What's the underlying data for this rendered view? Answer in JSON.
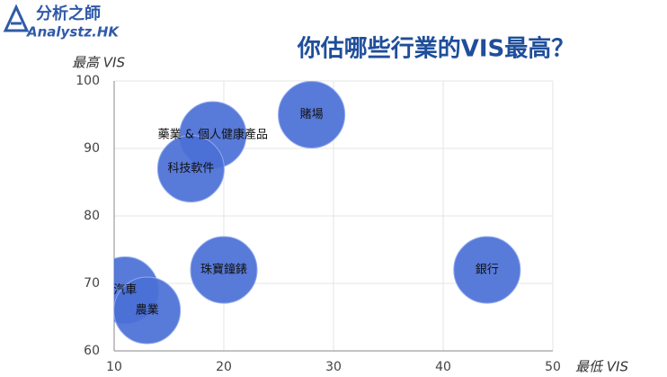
{
  "logo": {
    "name": "分析之師",
    "site": "Analystz.HK"
  },
  "chart_data": {
    "type": "scatter",
    "title": "你估哪些行業的VIS最高？",
    "x_label": "最低 VIS",
    "y_label": "最高 VIS",
    "labels": [
      "賭場",
      "藥業 & 個人健康產品",
      "科技軟件",
      "珠寶鐘錶",
      "銀行",
      "汽車",
      "農業"
    ],
    "x": [
      28,
      19,
      17,
      20,
      44,
      11,
      13
    ],
    "values": [
      95,
      92,
      87,
      72,
      72,
      69,
      66
    ],
    "color": "#4a6fd6",
    "xlim": [
      10,
      50
    ],
    "xticks": [
      10,
      20,
      30,
      40,
      50
    ],
    "ylim": [
      60,
      100
    ],
    "yticks": [
      60,
      70,
      80,
      90,
      100
    ],
    "grid": true
  }
}
